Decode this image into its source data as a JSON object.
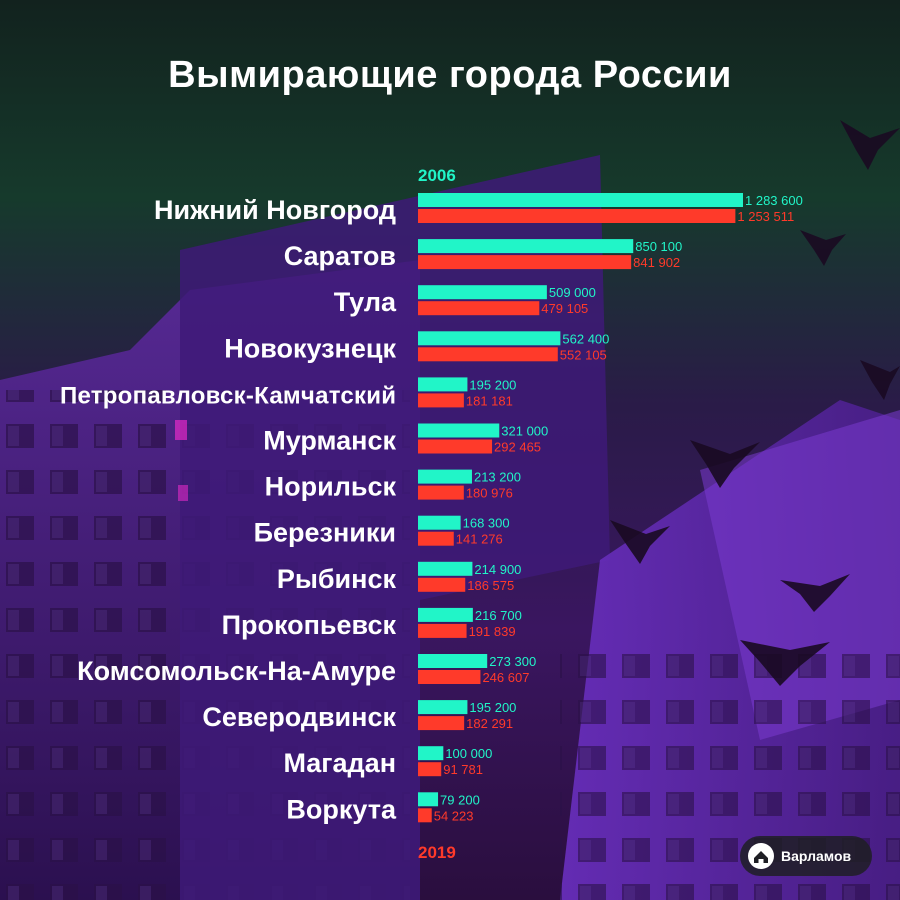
{
  "title": "Вымирающие города России",
  "brand": {
    "name": "Варламов",
    "icon": "house-logo-icon"
  },
  "colors": {
    "series_2006": "#21f5c8",
    "series_2019": "#ff3a2a",
    "background": "#3a1660"
  },
  "chart_data": {
    "type": "bar",
    "orientation": "horizontal",
    "title": "Вымирающие города России",
    "categories": [
      "Нижний Новгород",
      "Саратов",
      "Тула",
      "Новокузнецк",
      "Петропавловск-Камчатский",
      "Мурманск",
      "Норильск",
      "Березники",
      "Рыбинск",
      "Прокопьевск",
      "Комсомольск-На-Амуре",
      "Северодвинск",
      "Магадан",
      "Воркута"
    ],
    "series": [
      {
        "name": "2006",
        "color": "#21f5c8",
        "values": [
          1283600,
          850100,
          509000,
          562400,
          195200,
          321000,
          213200,
          168300,
          214900,
          216700,
          273300,
          195200,
          100000,
          79200
        ],
        "labels": [
          "1 283 600",
          "850 100",
          "509 000",
          "562 400",
          "195 200",
          "321 000",
          "213 200",
          "168 300",
          "214 900",
          "216 700",
          "273 300",
          "195 200",
          "100 000",
          "79 200"
        ]
      },
      {
        "name": "2019",
        "color": "#ff3a2a",
        "values": [
          1253511,
          841902,
          479105,
          552105,
          181181,
          292465,
          180976,
          141276,
          186575,
          191839,
          246607,
          182291,
          91781,
          54223
        ],
        "labels": [
          "1 253 511",
          "841 902",
          "479 105",
          "552 105",
          "181 181",
          "292 465",
          "180 976",
          "141 276",
          "186 575",
          "191 839",
          "246 607",
          "182 291",
          "91 781",
          "54 223"
        ]
      }
    ],
    "legend": {
      "top_label": "2006",
      "bottom_label": "2019"
    },
    "grid": false
  }
}
